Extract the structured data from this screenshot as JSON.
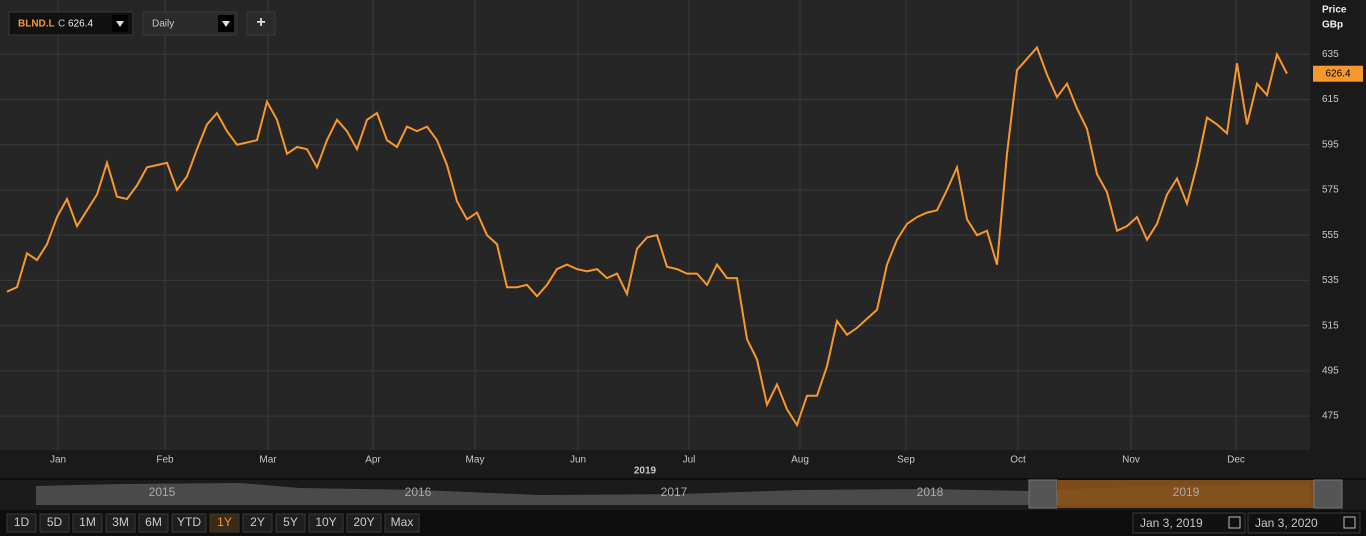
{
  "chart_data": {
    "type": "line",
    "symbol": "BLND.L",
    "close_label": "C",
    "interval": "Daily",
    "y_axis_label": "Price",
    "y_axis_unit": "GBp",
    "x_axis_label": "2019",
    "color": "#f7982f",
    "values": [
      530,
      532,
      547,
      544,
      551,
      563,
      571,
      559,
      566,
      573,
      587,
      572,
      571,
      577,
      585,
      586,
      587,
      575,
      581,
      593,
      604,
      609,
      601,
      595,
      596,
      597,
      614,
      606,
      591,
      594,
      593,
      585,
      597,
      606,
      601,
      593,
      606,
      609,
      597,
      594,
      603,
      601,
      603,
      597,
      586,
      570,
      562,
      565,
      555,
      551,
      532,
      532,
      533,
      528,
      533,
      540,
      542,
      540,
      539,
      540,
      536,
      538,
      529,
      549,
      554,
      555,
      541,
      540,
      538,
      538,
      533,
      542,
      536,
      536,
      509,
      500,
      480,
      489,
      478,
      471,
      484,
      484,
      497,
      517,
      511,
      514,
      518,
      522,
      542,
      553,
      560,
      563,
      565,
      566,
      575,
      585,
      562,
      555,
      557,
      542,
      591,
      628,
      633,
      638,
      626,
      616,
      622,
      611,
      602,
      582,
      574,
      557,
      559,
      563,
      553,
      560,
      573,
      580,
      569,
      586,
      607,
      604,
      600,
      631,
      604,
      622,
      617,
      635,
      626.4
    ],
    "xlim": [
      -0.7,
      130.3
    ],
    "xticks": [
      {
        "value": 5.1,
        "label": "Jan"
      },
      {
        "value": 15.8,
        "label": "Feb"
      },
      {
        "value": 26.1,
        "label": "Mar"
      },
      {
        "value": 36.6,
        "label": "Apr"
      },
      {
        "value": 46.8,
        "label": "May"
      },
      {
        "value": 57.1,
        "label": "Jun"
      },
      {
        "value": 68.2,
        "label": "Jul"
      },
      {
        "value": 79.3,
        "label": "Aug"
      },
      {
        "value": 89.9,
        "label": "Sep"
      },
      {
        "value": 101.1,
        "label": "Oct"
      },
      {
        "value": 112.4,
        "label": "Nov"
      },
      {
        "value": 122.9,
        "label": "Dec"
      }
    ],
    "ylim": [
      460,
      659
    ],
    "yticks": [
      475,
      495,
      515,
      535,
      555,
      575,
      595,
      615,
      635
    ],
    "grid": true
  },
  "ui": {
    "navigator_years": [
      "2015",
      "2016",
      "2017",
      "2018",
      "2019"
    ],
    "ranges": [
      "1D",
      "5D",
      "1M",
      "3M",
      "6M",
      "YTD",
      "1Y",
      "2Y",
      "5Y",
      "10Y",
      "20Y",
      "Max"
    ],
    "selected_range": "1Y",
    "start_date": "Jan 3, 2019",
    "end_date": "Jan 3, 2020",
    "add_button": "+"
  }
}
